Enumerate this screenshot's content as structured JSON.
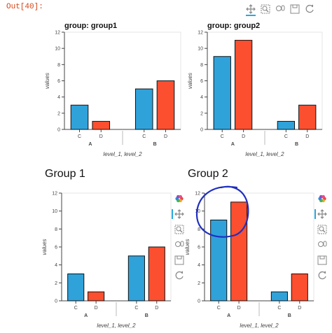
{
  "out_label": "Out[40]:",
  "headings": [
    "Group 1",
    "Group 2"
  ],
  "colors": {
    "C": "#30a2da",
    "D": "#fc4f30",
    "annotation": "#1f2fbf",
    "toolbar_active": "#26aae1"
  },
  "toolbar_icons": [
    "bokeh-logo-icon",
    "pan-icon",
    "box-zoom-icon",
    "wheel-zoom-icon",
    "save-icon",
    "reset-icon"
  ],
  "chart_data": [
    {
      "type": "bar",
      "title": "group: group1",
      "xlabel": "level_1, level_2",
      "ylabel": "values",
      "ylim": [
        0,
        12
      ],
      "yticks": [
        "0",
        "2",
        "4",
        "6",
        "8",
        "10",
        "12"
      ],
      "groups": [
        "A",
        "B"
      ],
      "categories": [
        "C",
        "D"
      ],
      "values": [
        [
          3,
          1
        ],
        [
          5,
          6
        ]
      ]
    },
    {
      "type": "bar",
      "title": "group: group2",
      "xlabel": "level_1, level_2",
      "ylabel": "values",
      "ylim": [
        0,
        12
      ],
      "yticks": [
        "0",
        "2",
        "4",
        "6",
        "8",
        "10",
        "12"
      ],
      "groups": [
        "A",
        "B"
      ],
      "categories": [
        "C",
        "D"
      ],
      "values": [
        [
          9,
          11
        ],
        [
          1,
          3
        ]
      ]
    },
    {
      "type": "bar",
      "title": "",
      "xlabel": "level_1, level_2",
      "ylabel": "values",
      "ylim": [
        0,
        12
      ],
      "yticks": [
        "0",
        "2",
        "4",
        "6",
        "8",
        "10",
        "12"
      ],
      "groups": [
        "A",
        "B"
      ],
      "categories": [
        "C",
        "D"
      ],
      "values": [
        [
          3,
          1
        ],
        [
          5,
          6
        ]
      ]
    },
    {
      "type": "bar",
      "title": "",
      "xlabel": "level_1, level_2",
      "ylabel": "values",
      "ylim": [
        0,
        12
      ],
      "yticks": [
        "0",
        "2",
        "4",
        "6",
        "8",
        "10",
        "12"
      ],
      "groups": [
        "A",
        "B"
      ],
      "categories": [
        "C",
        "D"
      ],
      "values": [
        [
          9,
          11
        ],
        [
          1,
          3
        ]
      ]
    }
  ]
}
